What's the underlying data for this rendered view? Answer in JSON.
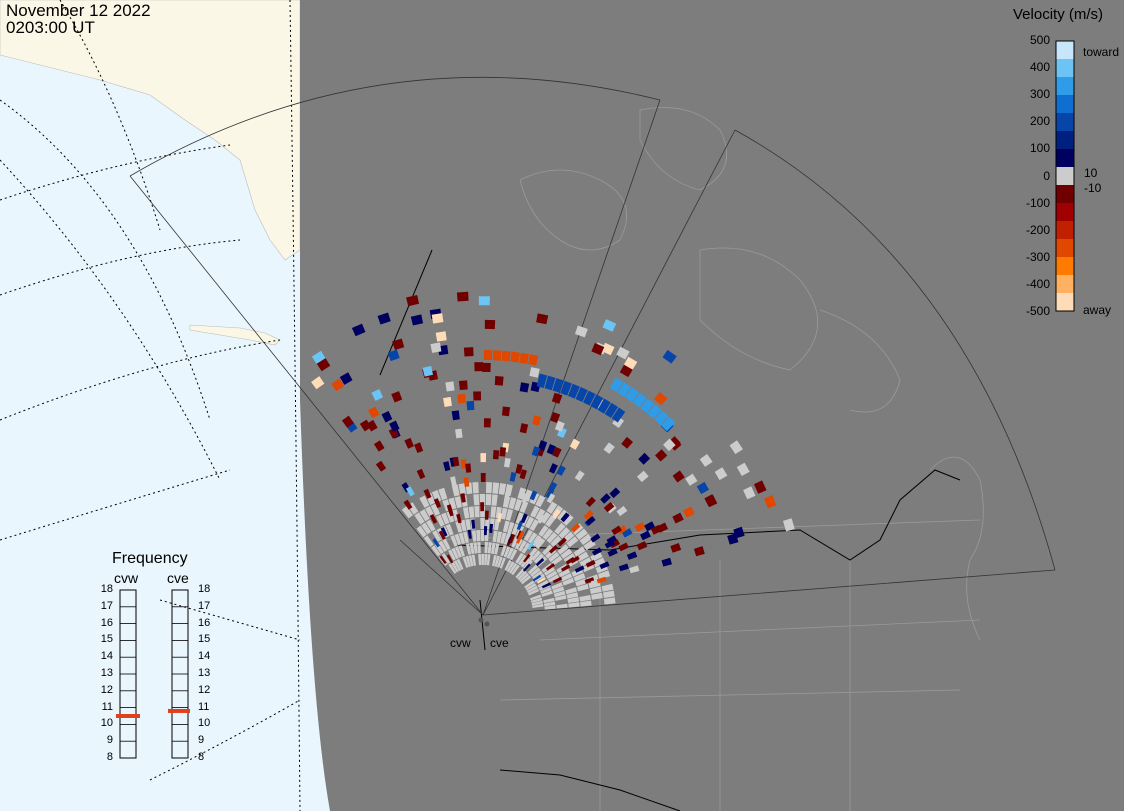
{
  "header": {
    "date": "November 12 2022",
    "time": "0203:00 UT"
  },
  "colorbar": {
    "title": "Velocity (m/s)",
    "ticks": [
      "500",
      "400",
      "300",
      "200",
      "100",
      "0",
      "-100",
      "-200",
      "-300",
      "-400",
      "-500"
    ],
    "toward_label": "toward",
    "away_label": "away",
    "pos_threshold": "10",
    "neg_threshold": "-10",
    "colors": [
      "#c8e6fa",
      "#6bc4f4",
      "#2e9ce8",
      "#0f6fd0",
      "#0845a8",
      "#002080",
      "#000060",
      "#cccccc",
      "#700000",
      "#a00000",
      "#c02000",
      "#e04800",
      "#ff7a00",
      "#ffb060",
      "#ffdcb8"
    ]
  },
  "frequency": {
    "title": "Frequency",
    "radars": [
      {
        "name": "cvw",
        "value_mhz": 10.5
      },
      {
        "name": "cve",
        "value_mhz": 10.8
      }
    ],
    "ticks": [
      "18",
      "17",
      "16",
      "15",
      "14",
      "13",
      "12",
      "11",
      "10",
      "9",
      "8"
    ],
    "range_mhz": [
      8,
      18
    ]
  },
  "radar_sites": [
    "cvw",
    "cve"
  ],
  "colors": {
    "land": "#7d7d7d",
    "ocean": "#eaf6fd",
    "night_land": "#fbf7e6",
    "ground_scatter": "#cccccc"
  }
}
